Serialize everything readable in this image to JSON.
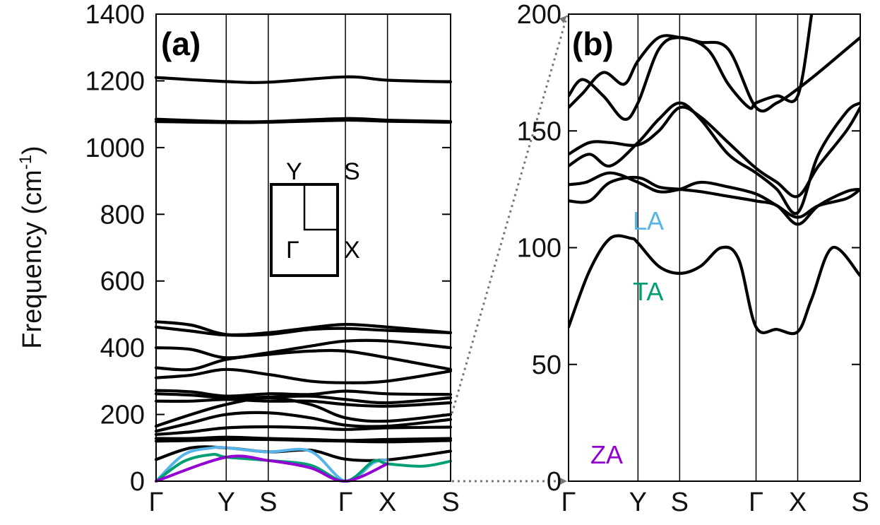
{
  "chart_data": [
    {
      "type": "line",
      "panel_label": "(a)",
      "ylabel": "Frequency (cm",
      "ylabel_exp": "-1",
      "ylabel_close": ")",
      "ylim": [
        0,
        1400
      ],
      "yticks": [
        "0",
        "200",
        "400",
        "600",
        "800",
        "1000",
        "1200",
        "1400"
      ],
      "ytick_values": [
        0,
        200,
        400,
        600,
        800,
        1000,
        1200,
        1400
      ],
      "x_path": [
        "Γ",
        "Y",
        "S",
        "Γ",
        "X",
        "S"
      ],
      "x_path_positions": [
        0,
        1,
        1.6,
        2.7,
        3.3,
        4.2
      ],
      "grid": "vertical lines at high-symmetry points",
      "inset": {
        "labels": [
          "Y",
          "S",
          "Γ",
          "X"
        ]
      },
      "series": [
        {
          "color": "#000000",
          "x": [
            0,
            1,
            1.6,
            2.7,
            3.3,
            4.2
          ],
          "y": [
            1210,
            1198,
            1196,
            1212,
            1202,
            1197
          ]
        },
        {
          "color": "#000000",
          "x": [
            0,
            1,
            1.6,
            2.7,
            3.3,
            4.2
          ],
          "y": [
            1085,
            1078,
            1078,
            1087,
            1082,
            1078
          ]
        },
        {
          "color": "#000000",
          "x": [
            0,
            1,
            1.6,
            2.7,
            3.3,
            4.2
          ],
          "y": [
            1078,
            1075,
            1076,
            1082,
            1079,
            1076
          ]
        },
        {
          "color": "#000000",
          "x": [
            0,
            0.5,
            1,
            1.6,
            2.2,
            2.7,
            3.3,
            4.2
          ],
          "y": [
            478,
            468,
            440,
            445,
            460,
            470,
            462,
            445
          ]
        },
        {
          "color": "#000000",
          "x": [
            0,
            0.5,
            1,
            1.6,
            2.2,
            2.7,
            3.3,
            4.2
          ],
          "y": [
            462,
            450,
            438,
            440,
            455,
            458,
            452,
            445
          ]
        },
        {
          "color": "#000000",
          "x": [
            0,
            0.5,
            1,
            1.6,
            2.2,
            2.7,
            3.3,
            4.2
          ],
          "y": [
            400,
            395,
            370,
            385,
            405,
            420,
            420,
            400
          ]
        },
        {
          "color": "#000000",
          "x": [
            0,
            0.5,
            1,
            1.6,
            2.2,
            2.7,
            3.3,
            4.2
          ],
          "y": [
            340,
            335,
            365,
            380,
            390,
            390,
            370,
            335
          ]
        },
        {
          "color": "#000000",
          "x": [
            0,
            0.5,
            1,
            1.6,
            2.2,
            2.7,
            3.3,
            4.2
          ],
          "y": [
            310,
            318,
            335,
            320,
            300,
            295,
            300,
            330
          ]
        },
        {
          "color": "#000000",
          "x": [
            0,
            0.5,
            1,
            1.6,
            2.2,
            2.7,
            3.3,
            4.2
          ],
          "y": [
            272,
            268,
            255,
            262,
            260,
            270,
            262,
            260
          ]
        },
        {
          "color": "#000000",
          "x": [
            0,
            0.5,
            1,
            1.6,
            2.2,
            2.7,
            3.3,
            4.2
          ],
          "y": [
            262,
            258,
            250,
            252,
            255,
            245,
            235,
            250
          ]
        },
        {
          "color": "#000000",
          "x": [
            0,
            0.5,
            1,
            1.6,
            2.2,
            2.7,
            3.3,
            4.2
          ],
          "y": [
            240,
            240,
            245,
            240,
            240,
            230,
            225,
            235
          ]
        },
        {
          "color": "#000000",
          "x": [
            0,
            0.5,
            1,
            1.6,
            2.2,
            2.7,
            3.3,
            4.2
          ],
          "y": [
            165,
            200,
            230,
            250,
            230,
            190,
            180,
            200
          ]
        },
        {
          "color": "#000000",
          "x": [
            0,
            0.5,
            1,
            1.6,
            2.2,
            2.7,
            3.3,
            4.2
          ],
          "y": [
            150,
            175,
            200,
            205,
            190,
            168,
            165,
            185
          ]
        },
        {
          "color": "#000000",
          "x": [
            0,
            0.5,
            1,
            1.6,
            2.2,
            2.7,
            3.3,
            4.2
          ],
          "y": [
            140,
            148,
            160,
            163,
            160,
            155,
            160,
            162
          ]
        },
        {
          "color": "#000000",
          "x": [
            0,
            0.5,
            1,
            1.6,
            2.2,
            2.7,
            3.3,
            4.2
          ],
          "y": [
            128,
            128,
            132,
            128,
            125,
            122,
            125,
            128
          ]
        },
        {
          "color": "#000000",
          "x": [
            0,
            0.5,
            1,
            1.6,
            2.2,
            2.7,
            3.3,
            4.2
          ],
          "y": [
            120,
            122,
            125,
            125,
            122,
            120,
            118,
            122
          ]
        },
        {
          "color": "#000000",
          "x": [
            0,
            0.5,
            1,
            1.6,
            2.2,
            2.7,
            3.3,
            4.2
          ],
          "y": [
            65,
            100,
            100,
            88,
            93,
            66,
            64,
            90
          ]
        },
        {
          "name": "LA",
          "color": "#56b4e9",
          "x": [
            0,
            0.4,
            0.8,
            1,
            1.6,
            2.2,
            2.7,
            3.1,
            3.3
          ],
          "y": [
            0,
            80,
            100,
            100,
            88,
            90,
            0,
            55,
            64
          ]
        },
        {
          "name": "TA",
          "color": "#009e73",
          "x": [
            0,
            0.4,
            0.8,
            1,
            1.6,
            2.2,
            2.7,
            3.1,
            3.3,
            3.8,
            4.2
          ],
          "y": [
            0,
            60,
            80,
            72,
            62,
            48,
            0,
            60,
            52,
            45,
            60
          ]
        },
        {
          "name": "ZA",
          "color": "#9400d3",
          "x": [
            0,
            1,
            1.6,
            2.2,
            2.7,
            3.3
          ],
          "y": [
            0,
            72,
            62,
            40,
            0,
            52
          ]
        }
      ]
    },
    {
      "type": "line",
      "panel_label": "(b)",
      "ylim": [
        0,
        200
      ],
      "yticks": [
        "0",
        "50",
        "100",
        "150",
        "200"
      ],
      "ytick_values": [
        0,
        50,
        100,
        150,
        200
      ],
      "x_path": [
        "Γ",
        "Y",
        "S",
        "Γ",
        "X",
        "S"
      ],
      "x_path_positions": [
        0,
        1,
        1.6,
        2.7,
        3.3,
        4.2
      ],
      "grid": "vertical lines at high-symmetry points",
      "annotations": [
        "LA",
        "TA",
        "ZA"
      ],
      "series": [
        {
          "color": "#000000",
          "x": [
            0,
            0.3,
            0.6,
            0.9,
            1,
            1.3,
            1.6,
            1.9,
            2.2,
            2.45,
            2.7,
            3.0,
            3.3,
            3.5,
            3.8,
            4.2
          ],
          "y": [
            66,
            90,
            104,
            104,
            102,
            92,
            89,
            92,
            100,
            95,
            66,
            65,
            64,
            78,
            100,
            88
          ]
        },
        {
          "color": "#000000",
          "x": [
            0,
            0.3,
            0.6,
            1,
            1.3,
            1.6,
            1.9,
            2.3,
            2.7,
            3.0,
            3.3,
            3.6,
            4.0,
            4.2
          ],
          "y": [
            120,
            120,
            128,
            130,
            126,
            125,
            124,
            122,
            120,
            118,
            110,
            118,
            124,
            125
          ]
        },
        {
          "color": "#000000",
          "x": [
            0,
            0.25,
            0.6,
            1,
            1.3,
            1.6,
            1.9,
            2.3,
            2.7,
            3.0,
            3.3,
            3.6,
            4.0,
            4.2
          ],
          "y": [
            127,
            128,
            132,
            128,
            124,
            125,
            128,
            126,
            123,
            118,
            113,
            118,
            121,
            125
          ]
        },
        {
          "color": "#000000",
          "x": [
            0,
            0.3,
            0.6,
            1,
            1.3,
            1.6,
            1.9,
            2.3,
            2.7,
            3.0,
            3.3,
            3.6,
            4.0,
            4.2
          ],
          "y": [
            140,
            145,
            145,
            144,
            150,
            160,
            156,
            145,
            134,
            128,
            122,
            135,
            150,
            160
          ]
        },
        {
          "color": "#000000",
          "x": [
            0,
            0.3,
            0.6,
            1,
            1.3,
            1.6,
            1.9,
            2.3,
            2.7,
            3.0,
            3.3,
            3.6,
            4.0,
            4.2
          ],
          "y": [
            135,
            140,
            135,
            145,
            155,
            162,
            155,
            140,
            132,
            125,
            115,
            140,
            158,
            162
          ]
        },
        {
          "color": "#000000",
          "x": [
            0,
            0.2,
            0.5,
            0.8,
            1,
            1.3,
            1.6,
            1.9,
            2.3,
            2.7,
            3.0,
            3.3,
            3.6,
            4.0,
            4.2
          ],
          "y": [
            160,
            166,
            175,
            170,
            180,
            190,
            190,
            188,
            185,
            160,
            162,
            168,
            175,
            185,
            190
          ]
        },
        {
          "color": "#000000",
          "x": [
            0,
            0.2,
            0.5,
            0.8,
            1,
            1.3,
            1.6,
            2.0,
            2.3,
            2.6,
            2.7,
            3.0,
            3.3,
            3.5
          ],
          "y": [
            165,
            172,
            165,
            155,
            162,
            185,
            190,
            185,
            170,
            160,
            162,
            165,
            165,
            200
          ]
        }
      ]
    }
  ]
}
